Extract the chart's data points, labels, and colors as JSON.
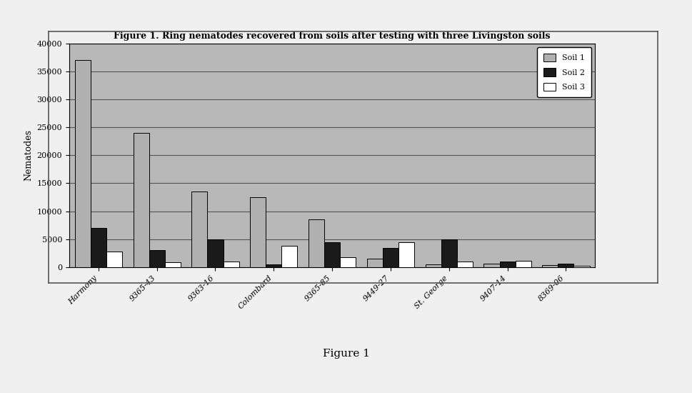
{
  "title": "Figure 1. Ring nematodes recovered from soils after testing with three Livingston soils",
  "ylabel": "Nematodes",
  "categories": [
    "Harmony",
    "9365-43",
    "9363-16",
    "Colombard",
    "9365-85",
    "9449-27",
    "St. George",
    "9407-14",
    "8369-06"
  ],
  "soil1": [
    37000,
    24000,
    13500,
    12500,
    8500,
    1500,
    500,
    700,
    400
  ],
  "soil2": [
    7000,
    3000,
    5000,
    500,
    4500,
    3500,
    5000,
    1000,
    700
  ],
  "soil3": [
    2800,
    900,
    1000,
    3800,
    1800,
    4500,
    1000,
    1200,
    300
  ],
  "color_soil1": "#b0b0b0",
  "color_soil2": "#1a1a1a",
  "color_soil3": "#ffffff",
  "ylim": [
    0,
    40000
  ],
  "yticks": [
    0,
    5000,
    10000,
    15000,
    20000,
    25000,
    30000,
    35000,
    40000
  ],
  "fig_bg_color": "#f0f0f0",
  "plot_bg_color": "#b8b8b8",
  "figure_caption": "Figure 1",
  "bar_edge_color": "#000000",
  "bar_width": 0.27,
  "grid_color": "#555555",
  "border_color": "#555555"
}
